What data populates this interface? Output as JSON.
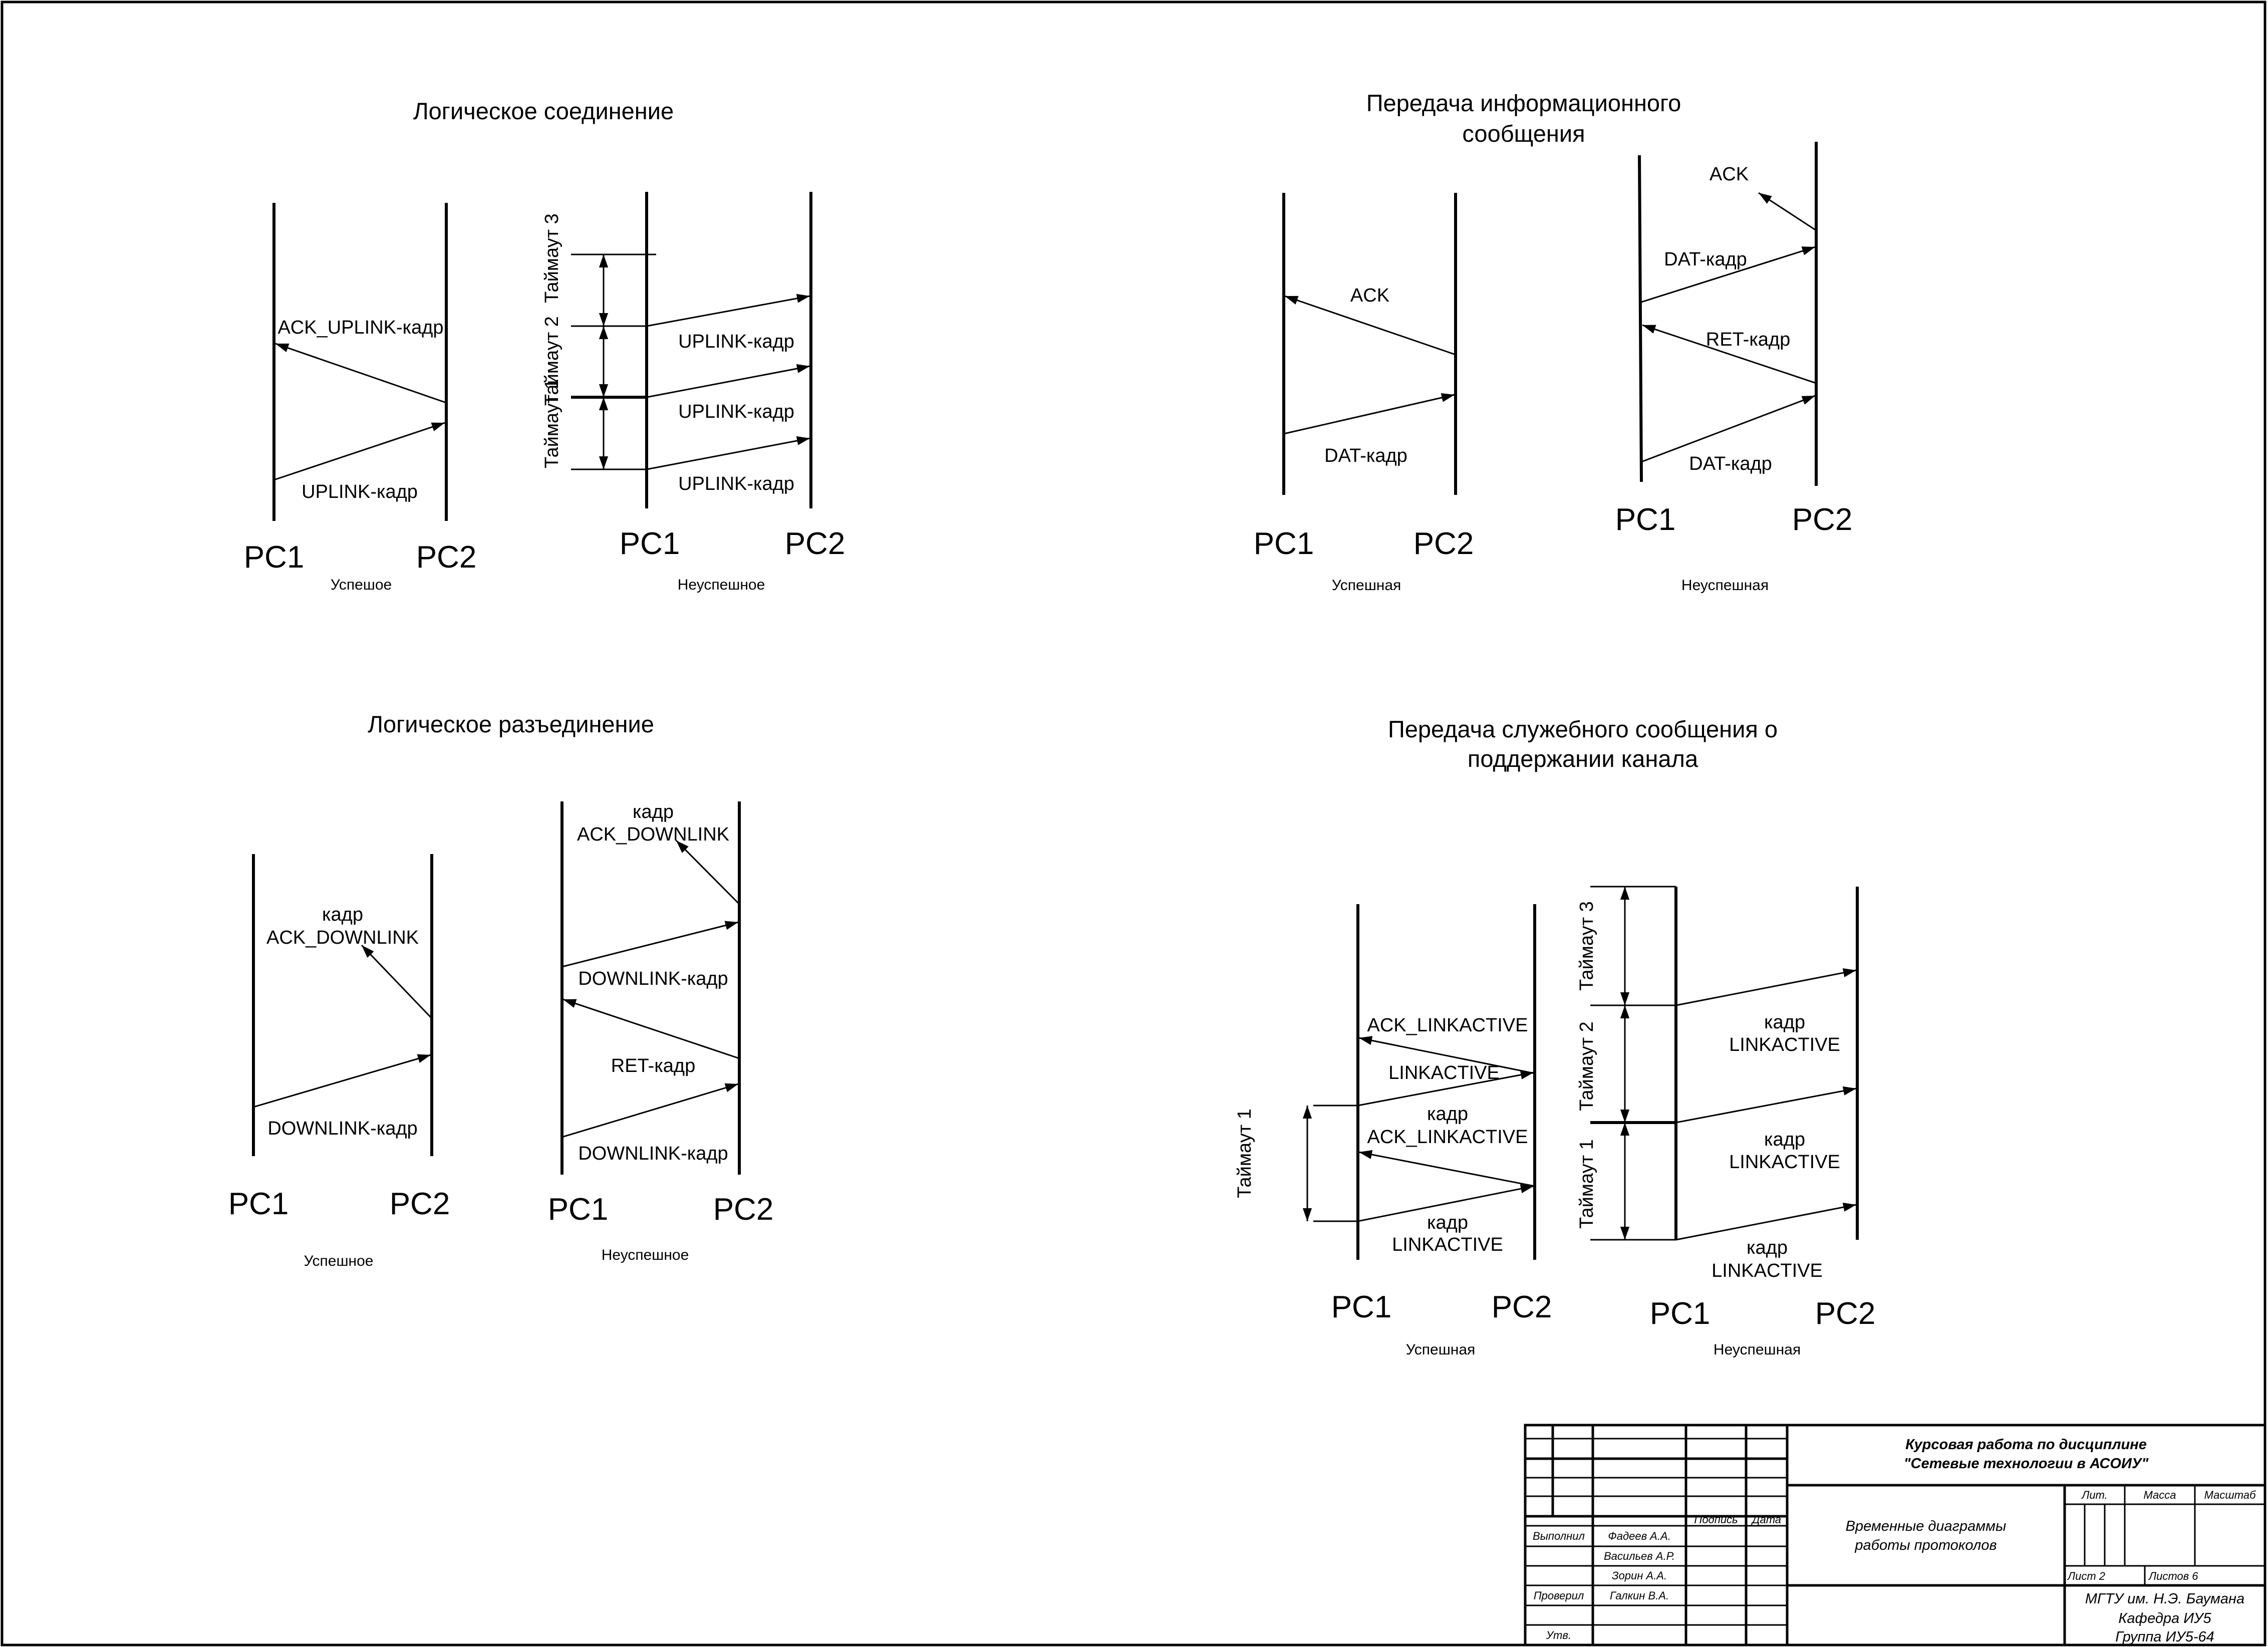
{
  "diagrams": {
    "connect": {
      "title": "Логическое соединение",
      "ok": {
        "caption": "Успешое",
        "left": "PC1",
        "right": "PC2",
        "arrows": [
          "ACK_UPLINK-кадр",
          "UPLINK-кадр"
        ]
      },
      "fail": {
        "caption": "Неуспешное",
        "left": "PC1",
        "right": "PC2",
        "arrows": [
          "UPLINK-кадр",
          "UPLINK-кадр",
          "UPLINK-кадр"
        ],
        "timeouts": [
          "Таймаут 1",
          "Таймаут 2",
          "Таймаут 3"
        ]
      }
    },
    "data": {
      "title_line1": "Передача информационного",
      "title_line2": "сообщения",
      "ok": {
        "caption": "Успешная",
        "left": "PC1",
        "right": "PC2",
        "arrows": [
          "ACK",
          "DAT-кадр"
        ]
      },
      "fail": {
        "caption": "Неуспешная",
        "left": "PC1",
        "right": "PC2",
        "arrows": [
          "ACK",
          "DAT-кадр",
          "RET-кадр",
          "DAT-кадр"
        ]
      }
    },
    "disconnect": {
      "title": "Логическое разъединение",
      "ok": {
        "caption": "Успешное",
        "left": "PC1",
        "right": "PC2",
        "ack_line1": "кадр",
        "ack_line2": "ACK_DOWNLINK",
        "arrows": [
          "DOWNLINK-кадр"
        ]
      },
      "fail": {
        "caption": "Неуспешное",
        "left": "PC1",
        "right": "PC2",
        "ack_line1": "кадр",
        "ack_line2": "ACK_DOWNLINK",
        "arrows": [
          "DOWNLINK-кадр",
          "RET-кадр",
          "DOWNLINK-кадр"
        ]
      }
    },
    "keepalive": {
      "title_line1": "Передача служебного сообщения о",
      "title_line2": "поддержании канала",
      "ok": {
        "caption": "Успешная",
        "left": "PC1",
        "right": "PC2",
        "arrows": [
          "ACK_LINKACTIVE",
          "LINKACTIVE",
          "кадр",
          "ACK_LINKACTIVE",
          "кадр",
          "LINKACTIVE"
        ],
        "timeouts": [
          "Таймаут 1"
        ]
      },
      "fail": {
        "caption": "Неуспешная",
        "left": "PC1",
        "right": "PC2",
        "arrows": [
          "кадр",
          "LINKACTIVE",
          "кадр",
          "LINKACTIVE",
          "кадр",
          "LINKACTIVE"
        ],
        "timeouts": [
          "Таймаут 1",
          "Таймаут 2",
          "Таймаут 3"
        ]
      }
    }
  },
  "title_block": {
    "course_line1": "Курсовая работа по дисциплине",
    "course_line2": "\"Сетевые технологии в АСОИУ\"",
    "doc_line1": "Временные диаграммы",
    "doc_line2": "работы протоколов",
    "col_sign": "Подпись",
    "col_date": "Дата",
    "row_made": "Выполнил",
    "row_checked": "Проверил",
    "row_approved": "Утв.",
    "people": [
      "Фадеев А.А.",
      "Васильев А.Р.",
      "Зорин А.А.",
      "Галкин В.А."
    ],
    "lit": "Лит.",
    "mass": "Масса",
    "scale": "Масштаб",
    "sheet": "Лист 2",
    "sheets": "Листов 6",
    "org_line1": "МГТУ им. Н.Э. Баумана",
    "org_line2": "Кафедра ИУ5",
    "org_line3": "Группа ИУ5-64"
  }
}
